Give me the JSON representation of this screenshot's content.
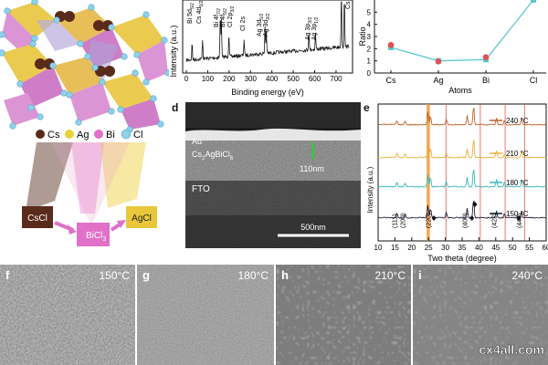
{
  "crystal": {
    "legend": [
      {
        "symbol": "Cs",
        "color": "#5a2a1a"
      },
      {
        "symbol": "Ag",
        "color": "#e8d23a"
      },
      {
        "symbol": "Bi",
        "color": "#e070c8"
      },
      {
        "symbol": "Cl",
        "color": "#8fd0ea"
      }
    ],
    "precursors": {
      "left": "CsCl",
      "middle": "BiCl",
      "middle_sub": "3",
      "right": "AgCl"
    }
  },
  "xps": {
    "ylabel": "Intensity (a.u.)",
    "xlabel": "Binding energy (eV)",
    "xticks": [
      "0",
      "100",
      "200",
      "300",
      "400",
      "500",
      "600",
      "700"
    ],
    "peaks": [
      "Bi 5d",
      "Cs 4d",
      "Bi 4f",
      "Bi 4f",
      "Cl 2p",
      "Cl 2s",
      "Ag 3d",
      "Ag 3d",
      "Ag 3p",
      "Ag 3p",
      "Cs 3d"
    ],
    "peak_subs": [
      "5/2",
      "5/2",
      "7/2",
      "5/2",
      "3/2",
      "",
      "5/2",
      "3/2",
      "3/2",
      "1/2",
      ""
    ]
  },
  "ratio": {
    "ylabel": "Ratio",
    "xlabel": "Atoms",
    "yticks": [
      "0",
      "1",
      "2",
      "3",
      "4",
      "5"
    ],
    "chart_data": {
      "type": "line",
      "categories": [
        "Cs",
        "Ag",
        "Bi",
        "Cl"
      ],
      "ylim": [
        0,
        6
      ],
      "series": [
        {
          "values": [
            2.1,
            1.0,
            1.1,
            6.0
          ],
          "color": "#5fc8d0"
        },
        {
          "values": [
            2.3,
            0.95,
            1.3,
            null
          ],
          "color": "#e05050"
        }
      ]
    }
  },
  "panel_d": {
    "label": "d",
    "layers": {
      "au": "Au",
      "cs_name": "Cs",
      "cs_sub1": "2",
      "cs_mid": "AgBiCl",
      "cs_sub2": "6",
      "fto": "FTO"
    },
    "thickness": "110nm",
    "scale": "500nm"
  },
  "xrd": {
    "label": "e",
    "ylabel": "Intensity (a.u.)",
    "xlabel": "Two theta (degree)",
    "xticks": [
      "10",
      "15",
      "20",
      "25",
      "30",
      "35",
      "40",
      "45",
      "50",
      "55",
      "60"
    ],
    "chart_data": {
      "type": "line",
      "x_range": [
        10,
        60
      ],
      "series": [
        {
          "name": "240 °C",
          "color": "#c0602a"
        },
        {
          "name": "210 °C",
          "color": "#e8b040"
        },
        {
          "name": "180 °C",
          "color": "#3ab8b8"
        },
        {
          "name": "150 °C",
          "color": "#1e1e3a"
        }
      ],
      "reflections": [
        {
          "hkl": "(111)",
          "two_theta": 15.6
        },
        {
          "hkl": "(200)",
          "two_theta": 18.0
        },
        {
          "hkl": "(220)",
          "two_theta": 25.6
        },
        {
          "hkl": "(400)",
          "two_theta": 36.5
        },
        {
          "hkl": "(422)",
          "two_theta": 45.2
        },
        {
          "hkl": "(440)",
          "two_theta": 52.7
        }
      ]
    }
  },
  "sem": [
    {
      "label": "f",
      "temp": "150°C"
    },
    {
      "label": "g",
      "temp": "180°C"
    },
    {
      "label": "h",
      "temp": "210°C"
    },
    {
      "label": "i",
      "temp": "240°C"
    }
  ],
  "watermark": "cx4all.com"
}
